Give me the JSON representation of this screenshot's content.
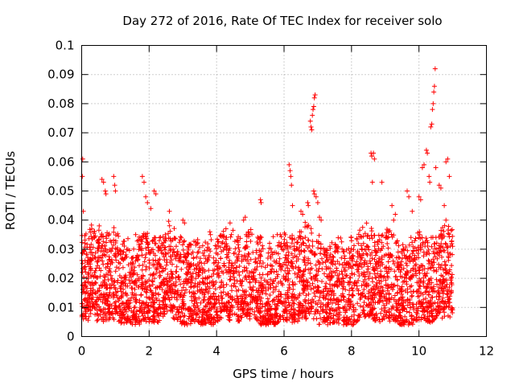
{
  "chart_data": {
    "type": "scatter",
    "title": "Day 272 of 2016, Rate Of TEC Index for receiver solo",
    "xlabel": "GPS time / hours",
    "ylabel": "ROTI / TECUs",
    "xlim": [
      0,
      12
    ],
    "ylim": [
      0,
      0.1
    ],
    "xticks": [
      0,
      2,
      4,
      6,
      8,
      10,
      12
    ],
    "xtick_labels": [
      "0",
      "2",
      "4",
      "6",
      "8",
      "10",
      "12"
    ],
    "yticks": [
      0,
      0.01,
      0.02,
      0.03,
      0.04,
      0.05,
      0.06,
      0.07,
      0.08,
      0.09,
      0.1
    ],
    "ytick_labels": [
      "0",
      "0.01",
      "0.02",
      "0.03",
      "0.04",
      "0.05",
      "0.06",
      "0.07",
      "0.08",
      "0.09",
      "0.1"
    ],
    "grid": true,
    "marker": "+",
    "color": "#ff0000",
    "data_time_range_hours": [
      0,
      11
    ],
    "typical_range": [
      0.005,
      0.035
    ],
    "series": [
      {
        "name": "ROTI",
        "points": [
          [
            0.02,
            0.055
          ],
          [
            0.03,
            0.061
          ],
          [
            0.05,
            0.043
          ],
          [
            0.1,
            0.032
          ],
          [
            0.3,
            0.037
          ],
          [
            0.52,
            0.038
          ],
          [
            0.6,
            0.054
          ],
          [
            0.65,
            0.053
          ],
          [
            0.7,
            0.05
          ],
          [
            0.72,
            0.049
          ],
          [
            0.95,
            0.055
          ],
          [
            0.98,
            0.052
          ],
          [
            1.0,
            0.05
          ],
          [
            1.6,
            0.035
          ],
          [
            1.8,
            0.055
          ],
          [
            1.85,
            0.053
          ],
          [
            1.9,
            0.048
          ],
          [
            1.95,
            0.046
          ],
          [
            2.05,
            0.044
          ],
          [
            2.15,
            0.05
          ],
          [
            2.2,
            0.049
          ],
          [
            2.6,
            0.043
          ],
          [
            3.0,
            0.04
          ],
          [
            3.05,
            0.039
          ],
          [
            3.8,
            0.036
          ],
          [
            3.82,
            0.035
          ],
          [
            4.4,
            0.039
          ],
          [
            4.8,
            0.04
          ],
          [
            4.85,
            0.041
          ],
          [
            5.3,
            0.047
          ],
          [
            5.32,
            0.046
          ],
          [
            5.8,
            0.035
          ],
          [
            6.15,
            0.059
          ],
          [
            6.18,
            0.057
          ],
          [
            6.2,
            0.055
          ],
          [
            6.22,
            0.052
          ],
          [
            6.25,
            0.045
          ],
          [
            6.5,
            0.043
          ],
          [
            6.55,
            0.042
          ],
          [
            6.7,
            0.046
          ],
          [
            6.72,
            0.045
          ],
          [
            6.78,
            0.074
          ],
          [
            6.8,
            0.072
          ],
          [
            6.82,
            0.071
          ],
          [
            6.84,
            0.076
          ],
          [
            6.86,
            0.078
          ],
          [
            6.88,
            0.079
          ],
          [
            6.9,
            0.082
          ],
          [
            6.92,
            0.083
          ],
          [
            6.88,
            0.05
          ],
          [
            6.9,
            0.049
          ],
          [
            6.95,
            0.048
          ],
          [
            7.0,
            0.046
          ],
          [
            7.05,
            0.041
          ],
          [
            7.1,
            0.04
          ],
          [
            8.58,
            0.063
          ],
          [
            8.6,
            0.062
          ],
          [
            8.65,
            0.063
          ],
          [
            8.68,
            0.061
          ],
          [
            8.62,
            0.053
          ],
          [
            8.9,
            0.053
          ],
          [
            9.2,
            0.045
          ],
          [
            9.25,
            0.04
          ],
          [
            9.3,
            0.042
          ],
          [
            9.65,
            0.05
          ],
          [
            9.7,
            0.048
          ],
          [
            9.8,
            0.043
          ],
          [
            10.0,
            0.048
          ],
          [
            10.05,
            0.047
          ],
          [
            10.1,
            0.058
          ],
          [
            10.15,
            0.059
          ],
          [
            10.22,
            0.064
          ],
          [
            10.25,
            0.063
          ],
          [
            10.3,
            0.055
          ],
          [
            10.32,
            0.053
          ],
          [
            10.35,
            0.072
          ],
          [
            10.38,
            0.073
          ],
          [
            10.4,
            0.078
          ],
          [
            10.42,
            0.08
          ],
          [
            10.44,
            0.084
          ],
          [
            10.46,
            0.086
          ],
          [
            10.48,
            0.092
          ],
          [
            10.5,
            0.058
          ],
          [
            10.6,
            0.052
          ],
          [
            10.65,
            0.051
          ],
          [
            10.8,
            0.06
          ],
          [
            10.85,
            0.061
          ],
          [
            10.9,
            0.055
          ],
          [
            10.75,
            0.045
          ],
          [
            10.8,
            0.04
          ]
        ]
      }
    ]
  }
}
